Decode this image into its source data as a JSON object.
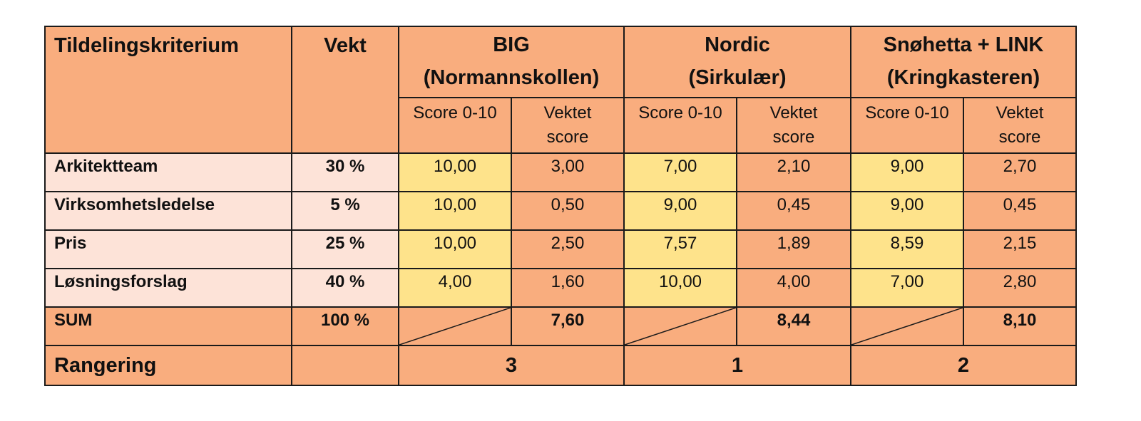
{
  "headers": {
    "criterion": "Tildelingskriterium",
    "weight": "Vekt",
    "score_label": "Score 0-10",
    "weighted_label_line1": "Vektet",
    "weighted_label_line2": "score"
  },
  "bidders": [
    {
      "name": "BIG",
      "project": "(Normannskollen)"
    },
    {
      "name": "Nordic",
      "project": "(Sirkulær)"
    },
    {
      "name": "Snøhetta + LINK",
      "project": "(Kringkasteren)"
    }
  ],
  "rows": [
    {
      "criterion": "Arkitektteam",
      "weight": "30 %",
      "cells": [
        "10,00",
        "3,00",
        "7,00",
        "2,10",
        "9,00",
        "2,70"
      ]
    },
    {
      "criterion": "Virksomhetsledelse",
      "weight": "5 %",
      "cells": [
        "10,00",
        "0,50",
        "9,00",
        "0,45",
        "9,00",
        "0,45"
      ]
    },
    {
      "criterion": "Pris",
      "weight": "25 %",
      "cells": [
        "10,00",
        "2,50",
        "7,57",
        "1,89",
        "8,59",
        "2,15"
      ]
    },
    {
      "criterion": "Løsningsforslag",
      "weight": "40 %",
      "cells": [
        "4,00",
        "1,60",
        "10,00",
        "4,00",
        "7,00",
        "2,80"
      ]
    }
  ],
  "sum": {
    "label": "SUM",
    "weight": "100 %",
    "totals": [
      "7,60",
      "8,44",
      "8,10"
    ]
  },
  "ranking": {
    "label": "Rangering",
    "values": [
      "3",
      "1",
      "2"
    ]
  },
  "colors": {
    "orange": "#f9ad7e",
    "pink": "#fde3d8",
    "yellow": "#fee38b"
  }
}
